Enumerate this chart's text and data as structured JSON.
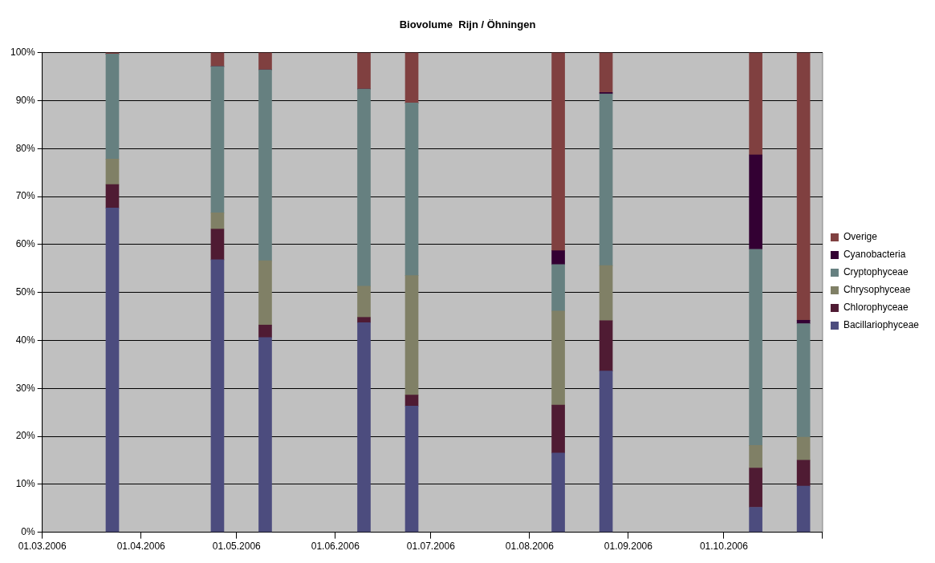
{
  "chart_data": {
    "type": "bar",
    "stacked": true,
    "title": "Biovolume  Rijn / Öhningen",
    "x": [
      "2006-03-23",
      "2006-04-25",
      "2006-05-10",
      "2006-06-10",
      "2006-06-25",
      "2006-08-10",
      "2006-08-25",
      "2006-10-11",
      "2006-10-26"
    ],
    "series": [
      {
        "name": "Bacillariophyceae",
        "color": "#4c4c7e",
        "values": [
          67.6,
          56.8,
          40.6,
          43.7,
          26.3,
          16.5,
          33.6,
          5.2,
          9.6
        ]
      },
      {
        "name": "Chlorophyceae",
        "color": "#4f1b33",
        "values": [
          4.9,
          6.4,
          2.6,
          1.1,
          2.3,
          10.0,
          10.5,
          8.2,
          5.4
        ]
      },
      {
        "name": "Chrysophyceae",
        "color": "#808066",
        "values": [
          5.3,
          3.4,
          13.4,
          6.5,
          24.9,
          19.6,
          11.5,
          4.7,
          4.8
        ]
      },
      {
        "name": "Cryptophyceae",
        "color": "#668080",
        "values": [
          21.9,
          30.5,
          39.8,
          41.1,
          36.0,
          9.7,
          35.8,
          40.9,
          23.7
        ]
      },
      {
        "name": "Cyanobacteria",
        "color": "#330033",
        "values": [
          0,
          0,
          0,
          0,
          0,
          2.9,
          0.3,
          19.7,
          0.7
        ]
      },
      {
        "name": "Overige",
        "color": "#804040",
        "values": [
          0.3,
          2.9,
          3.6,
          7.6,
          10.5,
          41.3,
          8.3,
          21.3,
          55.8
        ]
      }
    ],
    "xlim": [
      "2006-03-01",
      "2006-11-01"
    ],
    "xticks": [
      {
        "value": "2006-03-01",
        "label": "01.03.2006"
      },
      {
        "value": "2006-04-01",
        "label": "01.04.2006"
      },
      {
        "value": "2006-05-01",
        "label": "01.05.2006"
      },
      {
        "value": "2006-06-01",
        "label": "01.06.2006"
      },
      {
        "value": "2006-07-01",
        "label": "01.07.2006"
      },
      {
        "value": "2006-08-01",
        "label": "01.08.2006"
      },
      {
        "value": "2006-09-01",
        "label": "01.09.2006"
      },
      {
        "value": "2006-10-01",
        "label": "01.10.2006"
      },
      {
        "value": "2006-11-01",
        "label": null
      }
    ],
    "ylim": [
      0,
      100
    ],
    "yticks": [
      {
        "value": 0,
        "label": "0%"
      },
      {
        "value": 10,
        "label": "10%"
      },
      {
        "value": 20,
        "label": "20%"
      },
      {
        "value": 30,
        "label": "30%"
      },
      {
        "value": 40,
        "label": "40%"
      },
      {
        "value": 50,
        "label": "50%"
      },
      {
        "value": 60,
        "label": "60%"
      },
      {
        "value": 70,
        "label": "70%"
      },
      {
        "value": 80,
        "label": "80%"
      },
      {
        "value": 90,
        "label": "90%"
      },
      {
        "value": 100,
        "label": "100%"
      }
    ],
    "grid": "y",
    "legend": "right"
  }
}
